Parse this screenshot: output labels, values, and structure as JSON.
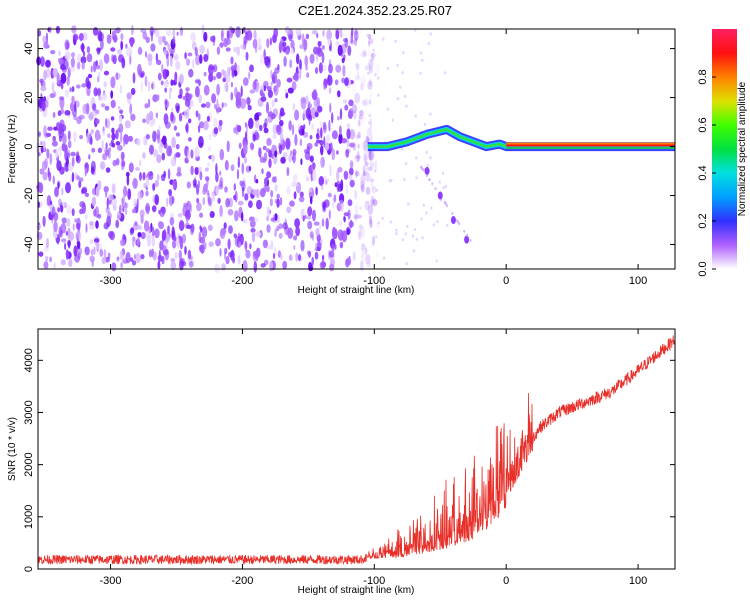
{
  "title": "C2E1.2024.352.23.25.R07",
  "colors": {
    "snr_line": "#e8302a",
    "background": "#ffffff",
    "frame": "#000000"
  },
  "chart_data": [
    {
      "type": "heatmap",
      "xlabel": "Height of straight line (km)",
      "ylabel": "Frequency (Hz)",
      "xlim": [
        -355,
        128
      ],
      "ylim": [
        -50,
        48
      ],
      "xticks": [
        -300,
        -200,
        -100,
        0,
        100
      ],
      "yticks": [
        -40,
        -20,
        0,
        20,
        40
      ],
      "grid": false,
      "colorbar": {
        "label": "Normalized spectral amplitude",
        "range": [
          0,
          1
        ],
        "ticks": [
          0.0,
          0.2,
          0.4,
          0.6,
          0.8
        ],
        "colormap": "rainbow-white"
      },
      "features": {
        "noise_region_x": [
          -355,
          -105
        ],
        "signal_tone_start_x": -108,
        "signal_tone_freq_hz": 0,
        "signal_path": [
          {
            "x": -105,
            "f": 0
          },
          {
            "x": -90,
            "f": 0
          },
          {
            "x": -75,
            "f": 2
          },
          {
            "x": -60,
            "f": 5
          },
          {
            "x": -45,
            "f": 7
          },
          {
            "x": -35,
            "f": 4
          },
          {
            "x": -25,
            "f": 2
          },
          {
            "x": -15,
            "f": 0
          },
          {
            "x": -5,
            "f": 1
          },
          {
            "x": 0,
            "f": 0
          },
          {
            "x": 128,
            "f": 0
          }
        ],
        "sideband_path": [
          {
            "x": -60,
            "f": -10
          },
          {
            "x": -50,
            "f": -20
          },
          {
            "x": -40,
            "f": -30
          },
          {
            "x": -30,
            "f": -38
          }
        ]
      }
    },
    {
      "type": "line",
      "xlabel": "Height of straight line (km)",
      "ylabel": "SNR (10 * v/v)",
      "xlim": [
        -355,
        128
      ],
      "ylim": [
        0,
        4600
      ],
      "xticks": [
        -300,
        -200,
        -100,
        0,
        100
      ],
      "yticks": [
        0,
        1000,
        2000,
        3000,
        4000
      ],
      "grid": false,
      "series": [
        {
          "trend": [
            {
              "x": -355,
              "y": 180
            },
            {
              "x": -110,
              "y": 180
            },
            {
              "x": -100,
              "y": 260
            },
            {
              "x": -80,
              "y": 350
            },
            {
              "x": -60,
              "y": 500
            },
            {
              "x": -40,
              "y": 700
            },
            {
              "x": -25,
              "y": 900
            },
            {
              "x": -15,
              "y": 1100
            },
            {
              "x": -5,
              "y": 1400
            },
            {
              "x": 5,
              "y": 1800
            },
            {
              "x": 15,
              "y": 2300
            },
            {
              "x": 25,
              "y": 2700
            },
            {
              "x": 40,
              "y": 3000
            },
            {
              "x": 60,
              "y": 3200
            },
            {
              "x": 80,
              "y": 3400
            },
            {
              "x": 100,
              "y": 3800
            },
            {
              "x": 128,
              "y": 4400
            }
          ]
        }
      ]
    }
  ]
}
